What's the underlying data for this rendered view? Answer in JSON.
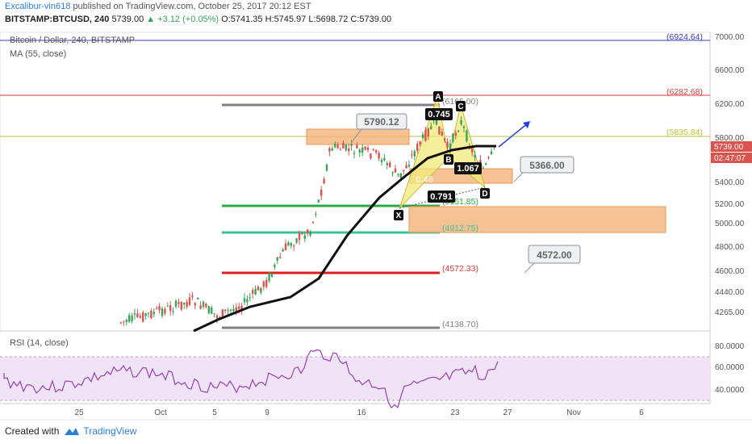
{
  "header": {
    "line1_user": "Excalibur-vin618",
    "line1_rest": "published on TradingView.com, October 25, 2017 20:12 EST",
    "symbol": "BITSTAMP:BTCUSD, 240",
    "last": "5739.00",
    "change": "+3.12 (+0.05%)",
    "ohlc": {
      "o": "O:5741.35",
      "h": "H:5745.97",
      "l": "L:5698.72",
      "c": "C:5739.00"
    }
  },
  "overlays": {
    "series_title": "Bitcoin / Dollar, 240, BITSTAMP",
    "ma_label": "MA (55, close)",
    "rsi_label": "RSI (14, close)"
  },
  "price_axis": {
    "ticks": [
      "7000.00",
      "6600.00",
      "6200.00",
      "5800.00",
      "5400.00",
      "5200.00",
      "5000.00",
      "4800.00",
      "4600.00",
      "4440.00",
      "4265.00"
    ],
    "current_price": "5739.00",
    "countdown": "02:47:07"
  },
  "rsi_axis": {
    "ticks": [
      "80.0000",
      "60.0000",
      "40.0000"
    ]
  },
  "time_axis": {
    "ticks": [
      "25",
      "Oct",
      "5",
      "9",
      "16",
      "23",
      "27",
      "Nov",
      "6"
    ]
  },
  "levels": [
    {
      "value": "(6924.64)",
      "color": "#3b3bb3"
    },
    {
      "value": "(6282.68)",
      "color": "#d23c3c"
    },
    {
      "value": "(6165.00)",
      "color": "#808080"
    },
    {
      "value": "(5835.84)",
      "color": "#b8c232"
    },
    {
      "value": "(5151.85)",
      "color": "#2eaa45"
    },
    {
      "value": "(4912.75)",
      "color": "#3cc29a"
    },
    {
      "value": "(4572.33)",
      "color": "#d23c3c"
    },
    {
      "value": "(4138.70)",
      "color": "#808080"
    }
  ],
  "callouts": [
    "5790.12",
    "5366.00",
    "4572.00"
  ],
  "pattern": {
    "points": [
      "X",
      "A",
      "B",
      "C",
      "D"
    ],
    "ratios": [
      "0.745",
      "1.067",
      "0.791",
      "0.46"
    ]
  },
  "footer": {
    "created_with": "Created with",
    "brand": "TradingView"
  },
  "colors": {
    "up": "#3aa35a",
    "down": "#d9534f",
    "ma": "#111111",
    "rsi": "#9b3fb5",
    "zone": "#f4b680"
  }
}
